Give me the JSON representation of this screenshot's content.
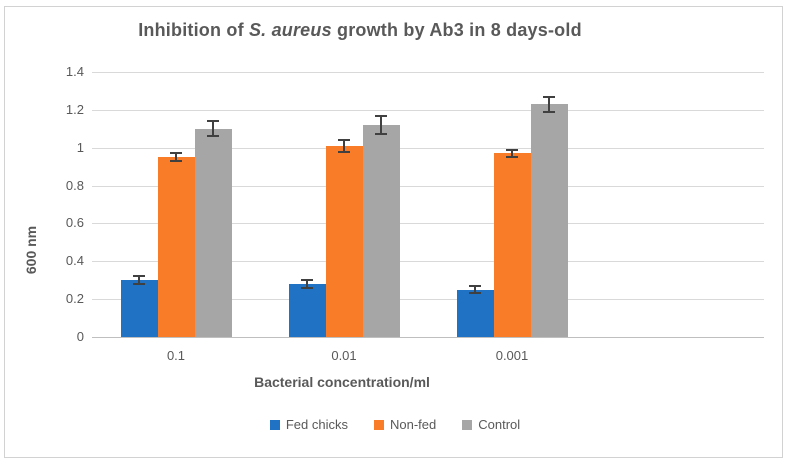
{
  "chart_data": {
    "type": "bar",
    "title_parts": [
      {
        "text": "Inhibition of ",
        "italic": false
      },
      {
        "text": "S. aureus",
        "italic": true
      },
      {
        "text": " growth by Ab3 in 8 days-old",
        "italic": false
      }
    ],
    "title_plain": "Inhibition of S. aureus growth by Ab3 in 8 days-old",
    "categories": [
      "0.1",
      "0.01",
      "0.001"
    ],
    "series": [
      {
        "name": "Fed chicks",
        "color": "#1f72c4",
        "values": [
          0.3,
          0.28,
          0.25
        ],
        "errors": [
          0.02,
          0.02,
          0.02
        ]
      },
      {
        "name": "Non-fed",
        "color": "#f97c28",
        "values": [
          0.95,
          1.01,
          0.97
        ],
        "errors": [
          0.02,
          0.03,
          0.02
        ]
      },
      {
        "name": "Control",
        "color": "#a6a6a6",
        "values": [
          1.1,
          1.12,
          1.23
        ],
        "errors": [
          0.04,
          0.05,
          0.04
        ]
      }
    ],
    "xlabel": "Bacterial concentration/ml",
    "ylabel": "600 nm",
    "ylim": [
      0,
      1.4
    ],
    "yticks": [
      "0",
      "0.2",
      "0.4",
      "0.6",
      "0.8",
      "1",
      "1.2",
      "1.4"
    ],
    "grid": true,
    "legend_position": "bottom",
    "colors": {
      "text": "#595959",
      "gridline": "#d9d9d9",
      "axis_line": "#bfbfbf",
      "error_bar": "#404040",
      "frame_border": "#d2d2d2",
      "background": "#ffffff"
    }
  }
}
